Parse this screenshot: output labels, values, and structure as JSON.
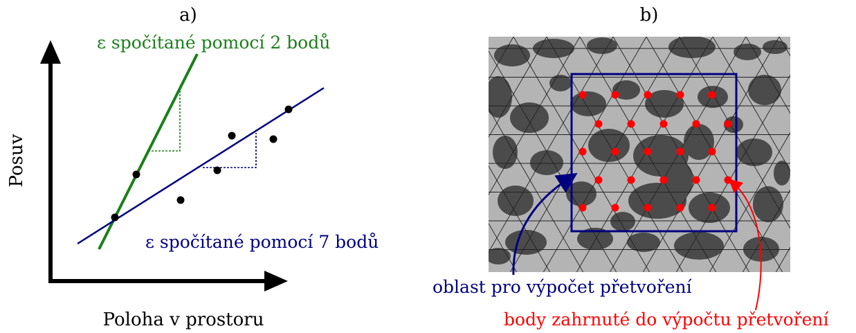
{
  "panel_a": {
    "label": "a)",
    "y_axis_label": "Posuv",
    "x_axis_label": "Poloha v prostoru",
    "green_line_label": "ε spočítané pomocí 2 bodů",
    "blue_line_label": "ε spočítané pomocí 7 bodů",
    "colors": {
      "green": "#1a7f1a",
      "blue": "#000080",
      "axis": "#000000",
      "points": "#000000"
    }
  },
  "panel_b": {
    "label": "b)",
    "area_label": "oblast pro výpočet přetvoření",
    "points_label": "body zahrnuté do výpočtu přetvoření",
    "colors": {
      "area": "#000080",
      "points": "#ff0000",
      "image_background": "#b3b3b3",
      "speckles": "#4a4a4a",
      "mesh": "#222222"
    }
  }
}
